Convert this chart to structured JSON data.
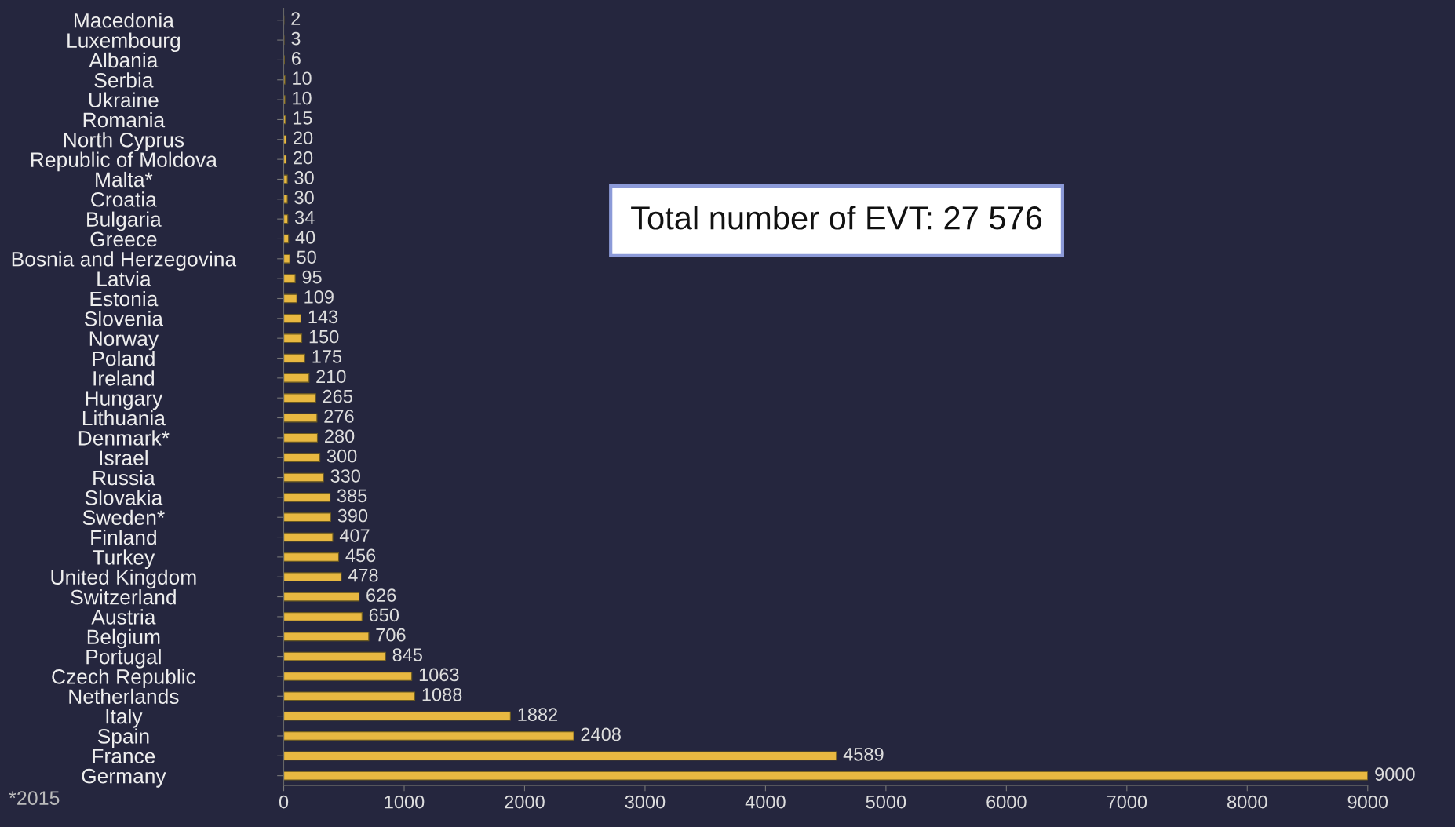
{
  "chart_data": {
    "type": "bar",
    "orientation": "horizontal",
    "categories": [
      "Macedonia",
      "Luxembourg",
      "Albania",
      "Serbia",
      "Ukraine",
      "Romania",
      "North Cyprus",
      "Republic of Moldova",
      "Malta*",
      "Croatia",
      "Bulgaria",
      "Greece",
      "Bosnia and Herzegovina",
      "Latvia",
      "Estonia",
      "Slovenia",
      "Norway",
      "Poland",
      "Ireland",
      "Hungary",
      "Lithuania",
      "Denmark*",
      "Israel",
      "Russia",
      "Slovakia",
      "Sweden*",
      "Finland",
      "Turkey",
      "United Kingdom",
      "Switzerland",
      "Austria",
      "Belgium",
      "Portugal",
      "Czech Republic",
      "Netherlands",
      "Italy",
      "Spain",
      "France",
      "Germany"
    ],
    "values": [
      2,
      3,
      6,
      10,
      10,
      15,
      20,
      20,
      30,
      30,
      34,
      40,
      50,
      95,
      109,
      143,
      150,
      175,
      210,
      265,
      276,
      280,
      300,
      330,
      385,
      390,
      407,
      456,
      478,
      626,
      650,
      706,
      845,
      1063,
      1088,
      1882,
      2408,
      4589,
      9000
    ],
    "color": "#e8b841",
    "xlim": [
      0,
      9000
    ],
    "xticks": [
      0,
      1000,
      2000,
      3000,
      4000,
      5000,
      6000,
      7000,
      8000,
      9000
    ],
    "data_labels": true,
    "grid": false,
    "legend": false,
    "annotations": [
      "Total number of EVT: 27 576",
      "*2015"
    ]
  }
}
